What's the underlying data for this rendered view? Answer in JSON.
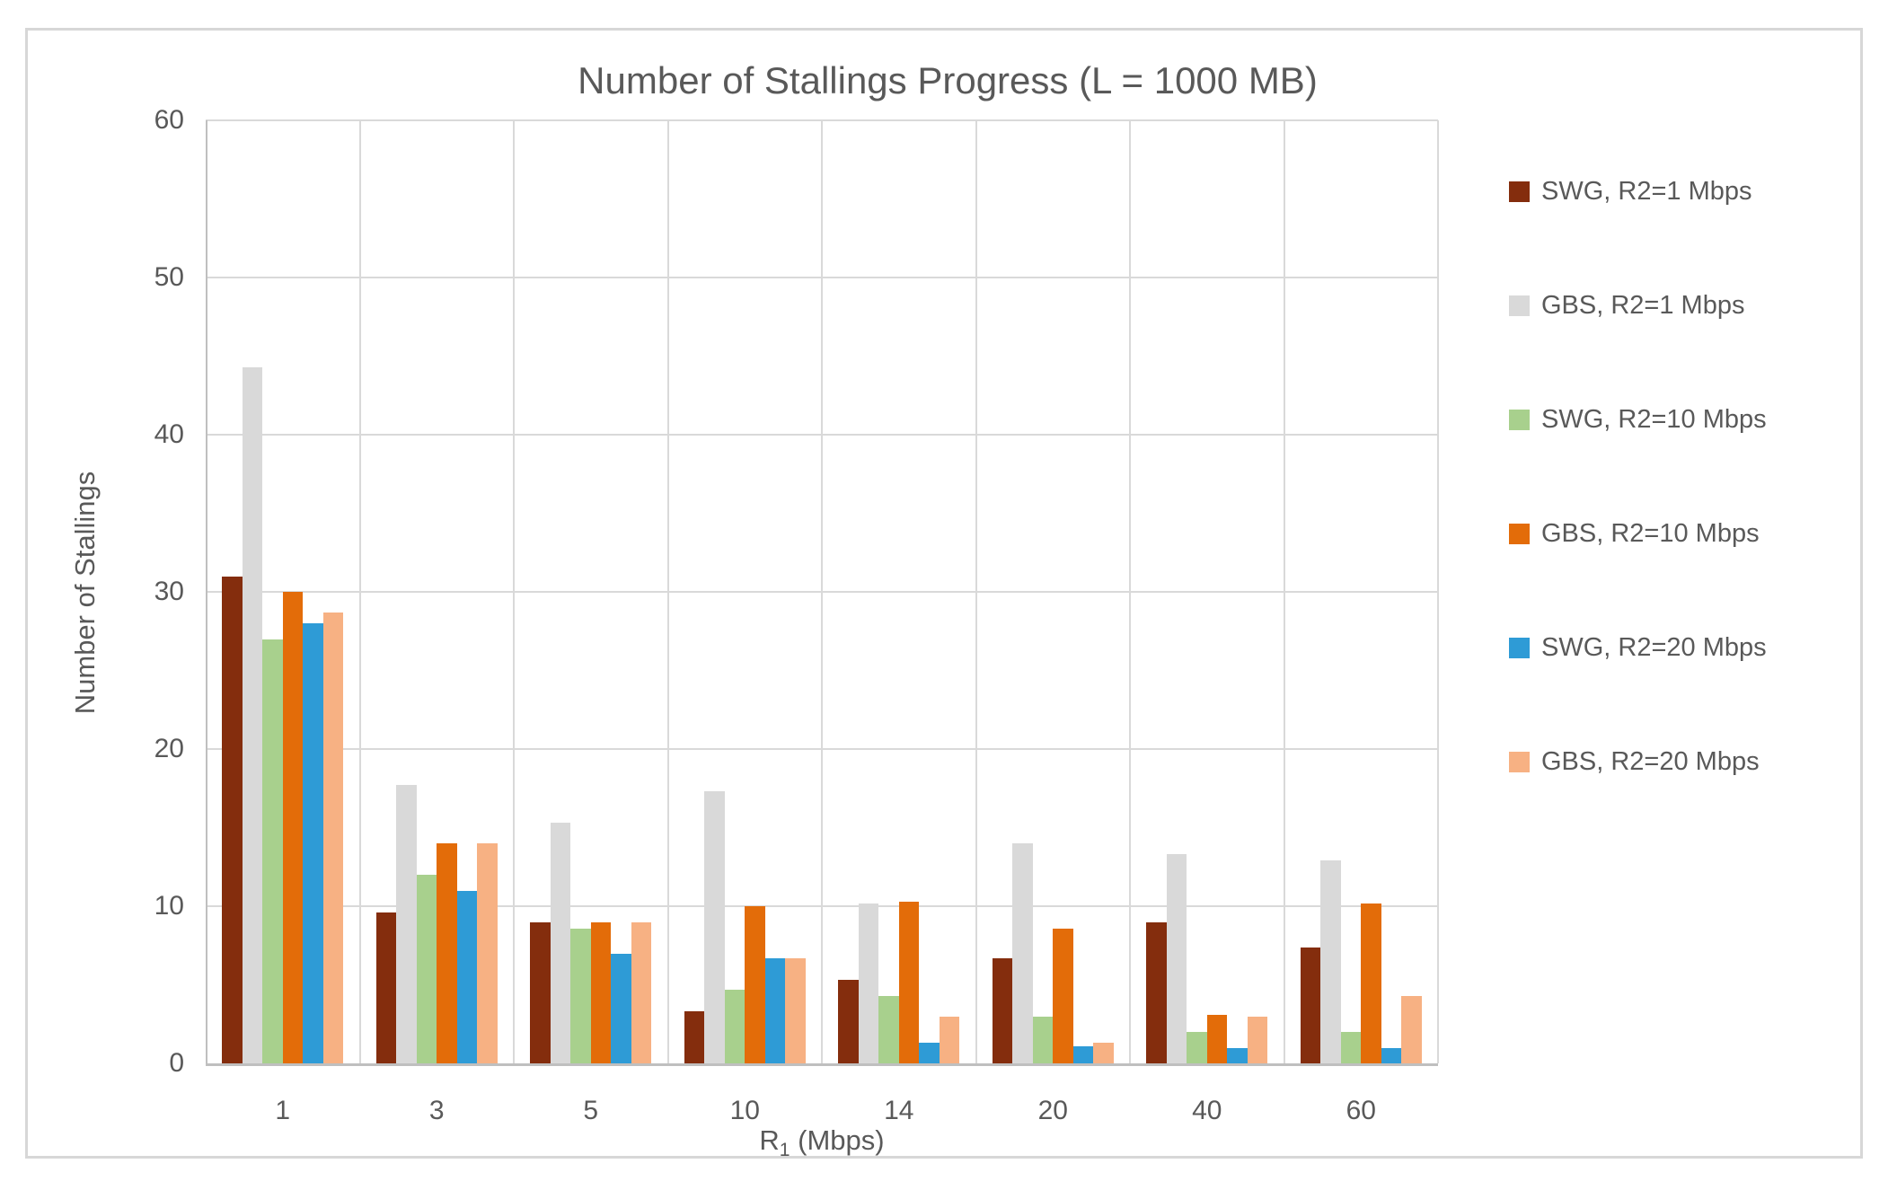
{
  "chart_data": {
    "type": "bar",
    "title": "Number of Stallings Progress (L = 1000 MB)",
    "ylabel": "Number of Stallings",
    "xlabel_base": "R",
    "xlabel_sub": "1",
    "xlabel_unit": " (Mbps)",
    "categories": [
      "1",
      "3",
      "5",
      "10",
      "14",
      "20",
      "40",
      "60"
    ],
    "series": [
      {
        "name": "SWG, R2=1 Mbps",
        "color": "#842d0d",
        "values": [
          31.0,
          9.6,
          9.0,
          3.3,
          5.3,
          6.7,
          9.0,
          7.4
        ]
      },
      {
        "name": "GBS, R2=1 Mbps",
        "color": "#d9d9d9",
        "values": [
          44.3,
          17.7,
          15.3,
          17.3,
          10.2,
          14.0,
          13.3,
          12.9
        ]
      },
      {
        "name": "SWG, R2=10 Mbps",
        "color": "#a8d08d",
        "values": [
          27.0,
          12.0,
          8.6,
          4.7,
          4.3,
          3.0,
          2.0,
          2.0
        ]
      },
      {
        "name": "GBS, R2=10 Mbps",
        "color": "#e36c09",
        "values": [
          30.0,
          14.0,
          9.0,
          10.0,
          10.3,
          8.6,
          3.1,
          10.2
        ]
      },
      {
        "name": "SWG, R2=20 Mbps",
        "color": "#2e9bd6",
        "values": [
          28.0,
          11.0,
          7.0,
          6.7,
          1.3,
          1.1,
          1.0,
          1.0
        ]
      },
      {
        "name": "GBS, R2=20 Mbps",
        "color": "#f7b183",
        "values": [
          28.7,
          14.0,
          9.0,
          6.7,
          3.0,
          1.3,
          3.0,
          4.3
        ]
      }
    ],
    "yticks": [
      0,
      10,
      20,
      30,
      40,
      50,
      60
    ],
    "ylim": [
      0,
      60
    ],
    "grid": true,
    "legend_position": "right"
  }
}
